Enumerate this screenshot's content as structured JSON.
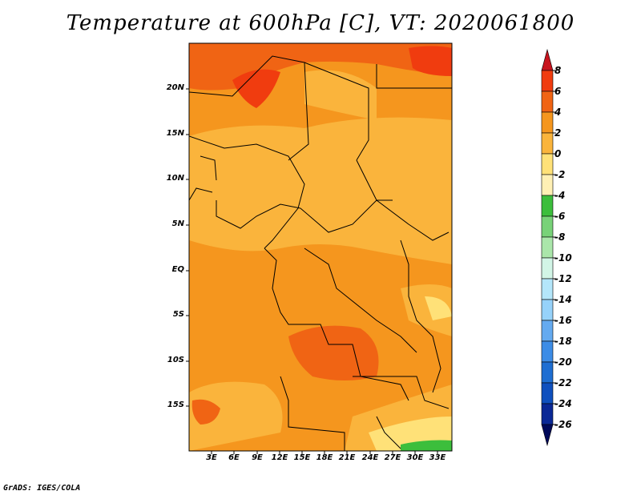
{
  "title": "Temperature at 600hPa [C], VT: 2020061800",
  "credit": "GrADS: IGES/COLA",
  "lat_labels": [
    "20N",
    "15N",
    "10N",
    "5N",
    "EQ",
    "5S",
    "10S",
    "15S"
  ],
  "lon_labels": [
    "3E",
    "6E",
    "9E",
    "12E",
    "15E",
    "18E",
    "21E",
    "24E",
    "27E",
    "30E",
    "33E"
  ],
  "colorbar": {
    "labels": [
      "8",
      "6",
      "4",
      "2",
      "0",
      "-2",
      "-4",
      "-6",
      "-8",
      "-10",
      "-12",
      "-14",
      "-16",
      "-18",
      "-20",
      "-22",
      "-24",
      "-26"
    ],
    "colors": [
      "#c8141e",
      "#f03c0f",
      "#f06414",
      "#f5961e",
      "#fab43c",
      "#ffe178",
      "#fff0b4",
      "#3cbe3c",
      "#78d278",
      "#aae6aa",
      "#d2f5e6",
      "#b4e6fa",
      "#96d2fa",
      "#64aaf0",
      "#3c8ce6",
      "#1e6ed2",
      "#0f50be",
      "#0a2896",
      "#000a5a"
    ]
  }
}
